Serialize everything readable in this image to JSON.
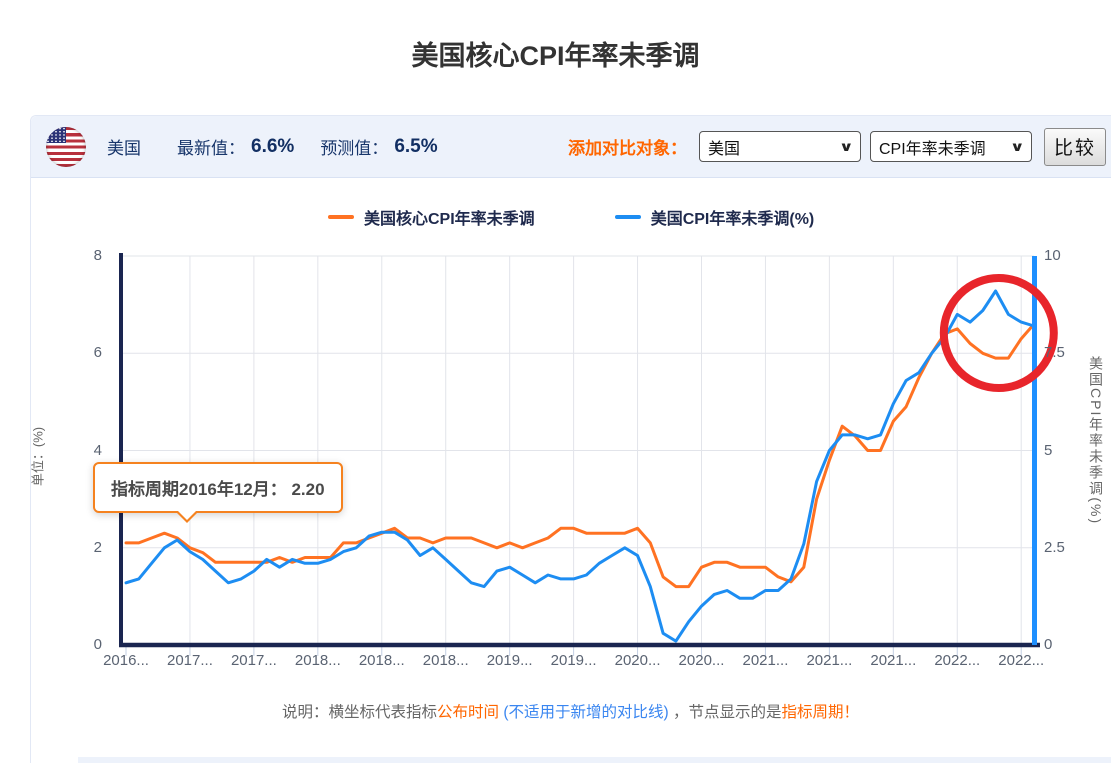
{
  "page": {
    "title": "美国核心CPI年率未季调"
  },
  "header": {
    "country": "美国",
    "latest_label": "最新值：",
    "latest_value": "6.6%",
    "forecast_label": "预测值：",
    "forecast_value": "6.5%",
    "compare_label": "添加对比对象：",
    "country_select_value": "美国",
    "indicator_select_value": "CPI年率未季调",
    "compare_button": "比较"
  },
  "legend": [
    {
      "label": "美国核心CPI年率未季调",
      "color": "#ff7222"
    },
    {
      "label": "美国CPI年率未季调(%)",
      "color": "#1d8df2"
    }
  ],
  "tooltip": {
    "text": "指标周期2016年12月： 2.20"
  },
  "footnote": {
    "segments": [
      {
        "text": "说明：横坐标代表指标",
        "color": "gray"
      },
      {
        "text": "公布时间",
        "color": "orange"
      },
      {
        "text": " (不适用于新增的对比线) ",
        "color": "blue"
      },
      {
        "text": "，节点显示的是",
        "color": "gray"
      },
      {
        "text": "指标周期！",
        "color": "orange"
      }
    ]
  },
  "colors": {
    "core_cpi_line": "#ff7222",
    "cpi_line": "#1d8df2",
    "axis_dark": "#1a2550",
    "axis_right_blue": "#1e8fff",
    "grid": "#e2e4ea",
    "tick": "#c3cfe3",
    "annotation_red": "#e8252b",
    "accent_orange": "#ff6600",
    "header_bg": "#edf2fb",
    "navy_text": "#18366b"
  },
  "chart_data": {
    "type": "line",
    "title": "美国核心CPI年率未季调",
    "x_labels": [
      "2016...",
      "2017...",
      "2017...",
      "2018...",
      "2018...",
      "2018...",
      "2019...",
      "2019...",
      "2020...",
      "2020...",
      "2021...",
      "2021...",
      "2021...",
      "2022...",
      "2022..."
    ],
    "label_every": 5,
    "left_axis": {
      "label": "单位：(%)",
      "ticks": [
        "0",
        "2",
        "4",
        "6",
        "8"
      ],
      "range": [
        0,
        8
      ]
    },
    "right_axis": {
      "label": "美国CPI年率未季调(%)",
      "ticks": [
        "0",
        "2.5",
        "5",
        "7.5",
        "10"
      ],
      "range": [
        0,
        10
      ]
    },
    "grid": true,
    "legend_position": "top",
    "series": [
      {
        "name": "美国核心CPI年率未季调",
        "axis": "left",
        "color": "#ff7222",
        "values": [
          2.1,
          2.1,
          2.2,
          2.3,
          2.2,
          2.0,
          1.9,
          1.7,
          1.7,
          1.7,
          1.7,
          1.7,
          1.8,
          1.7,
          1.8,
          1.8,
          1.8,
          2.1,
          2.1,
          2.2,
          2.3,
          2.4,
          2.2,
          2.2,
          2.1,
          2.2,
          2.2,
          2.2,
          2.1,
          2.0,
          2.1,
          2.0,
          2.1,
          2.2,
          2.4,
          2.4,
          2.3,
          2.3,
          2.3,
          2.3,
          2.4,
          2.1,
          1.4,
          1.2,
          1.2,
          1.6,
          1.7,
          1.7,
          1.6,
          1.6,
          1.6,
          1.4,
          1.3,
          1.6,
          3.0,
          3.8,
          4.5,
          4.3,
          4.0,
          4.0,
          4.6,
          4.9,
          5.5,
          6.0,
          6.4,
          6.5,
          6.2,
          6.0,
          5.9,
          5.9,
          6.3,
          6.6
        ]
      },
      {
        "name": "美国CPI年率未季调(%)",
        "axis": "right",
        "color": "#1d8df2",
        "values": [
          1.6,
          1.7,
          2.1,
          2.5,
          2.7,
          2.4,
          2.2,
          1.9,
          1.6,
          1.7,
          1.9,
          2.2,
          2.0,
          2.2,
          2.1,
          2.1,
          2.2,
          2.4,
          2.5,
          2.8,
          2.9,
          2.9,
          2.7,
          2.3,
          2.5,
          2.2,
          1.9,
          1.6,
          1.5,
          1.9,
          2.0,
          1.8,
          1.6,
          1.8,
          1.7,
          1.7,
          1.8,
          2.1,
          2.3,
          2.5,
          2.3,
          1.5,
          0.3,
          0.1,
          0.6,
          1.0,
          1.3,
          1.4,
          1.2,
          1.2,
          1.4,
          1.4,
          1.7,
          2.6,
          4.2,
          5.0,
          5.4,
          5.4,
          5.3,
          5.4,
          6.2,
          6.8,
          7.0,
          7.5,
          7.9,
          8.5,
          8.3,
          8.6,
          9.1,
          8.5,
          8.3,
          8.2
        ]
      }
    ],
    "annotation": {
      "type": "circle",
      "note": "red circle highlighting 2022 peak",
      "center_index": 67,
      "color": "#e8252b"
    },
    "tooltip_point": {
      "period": "2016年12月",
      "value": "2.20"
    }
  }
}
